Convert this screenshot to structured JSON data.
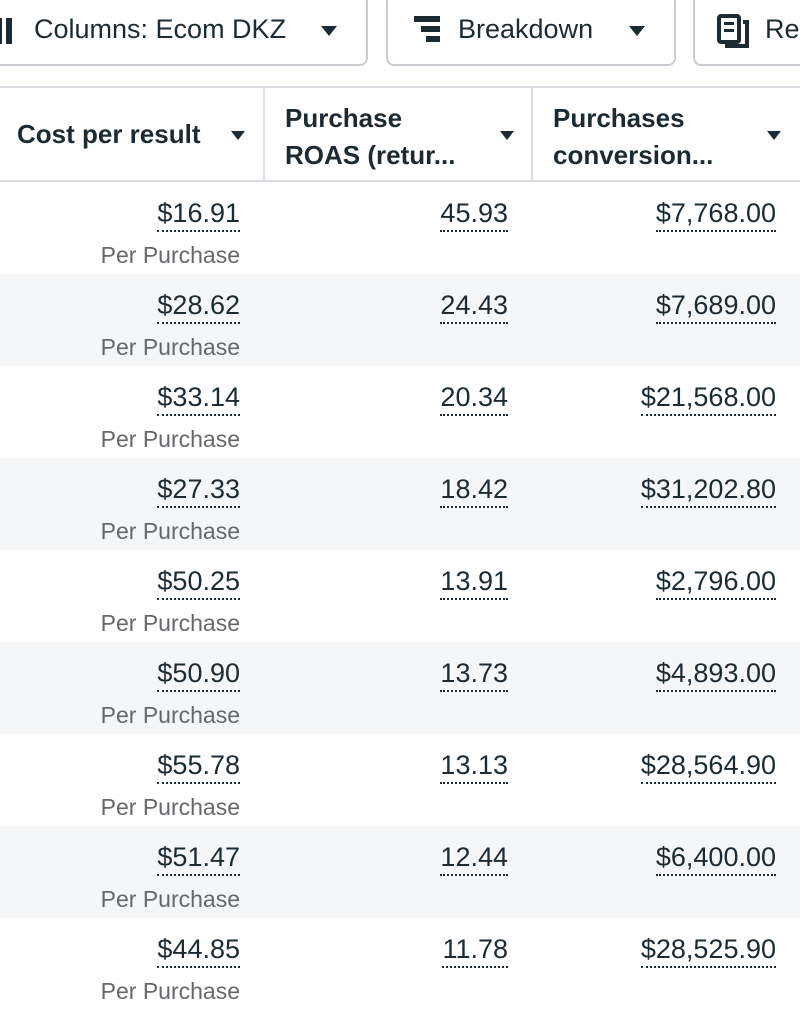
{
  "toolbar": {
    "buttons": [
      "Columns: Ecom DKZ",
      "Breakdown",
      "Re"
    ]
  },
  "table": {
    "columns": [
      "Cost per result",
      "Purchase\nROAS (retur...",
      "Purchases\nconversion..."
    ],
    "rows": [
      {
        "cost": "$16.91",
        "note": "Per Purchase",
        "roas": "45.93",
        "conversion": "$7,768.00"
      },
      {
        "cost": "$28.62",
        "note": "Per Purchase",
        "roas": "24.43",
        "conversion": "$7,689.00"
      },
      {
        "cost": "$33.14",
        "note": "Per Purchase",
        "roas": "20.34",
        "conversion": "$21,568.00"
      },
      {
        "cost": "$27.33",
        "note": "Per Purchase",
        "roas": "18.42",
        "conversion": "$31,202.80"
      },
      {
        "cost": "$50.25",
        "note": "Per Purchase",
        "roas": "13.91",
        "conversion": "$2,796.00"
      },
      {
        "cost": "$50.90",
        "note": "Per Purchase",
        "roas": "13.73",
        "conversion": "$4,893.00"
      },
      {
        "cost": "$55.78",
        "note": "Per Purchase",
        "roas": "13.13",
        "conversion": "$28,564.90"
      },
      {
        "cost": "$51.47",
        "note": "Per Purchase",
        "roas": "12.44",
        "conversion": "$6,400.00"
      },
      {
        "cost": "$44.85",
        "note": "Per Purchase",
        "roas": "11.78",
        "conversion": "$28,525.90"
      }
    ]
  }
}
